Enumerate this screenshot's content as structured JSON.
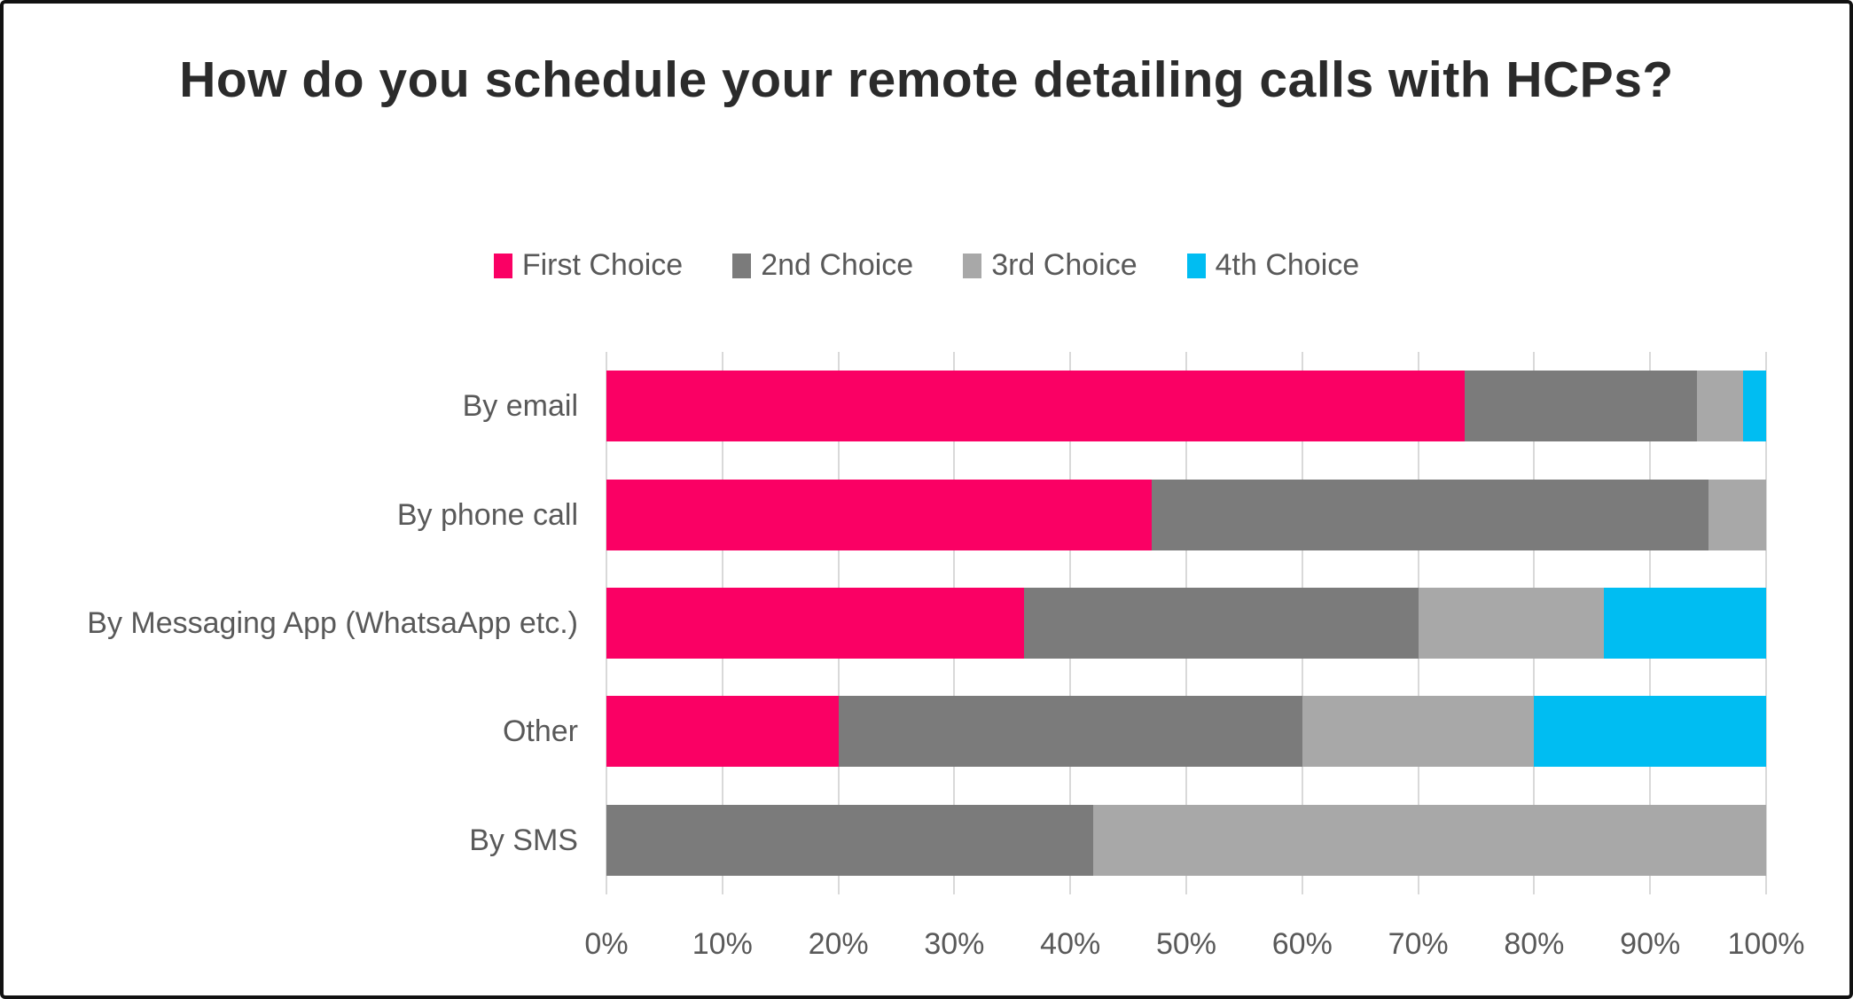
{
  "title": "How do you schedule your remote detailing calls with HCPs?",
  "legend": [
    {
      "label": "First Choice",
      "color": "#FA0064"
    },
    {
      "label": "2nd Choice",
      "color": "#7B7B7B"
    },
    {
      "label": "3rd Choice",
      "color": "#A8A8A8"
    },
    {
      "label": "4th Choice",
      "color": "#00BDF2"
    }
  ],
  "chart_data": {
    "type": "bar",
    "orientation": "horizontal",
    "stacked": true,
    "title": "How do you schedule your remote detailing calls with HCPs?",
    "categories": [
      "By email",
      "By phone call",
      "By Messaging App (WhatsaApp etc.)",
      "Other",
      "By SMS"
    ],
    "series": [
      {
        "name": "First Choice",
        "color": "#FA0064",
        "values": [
          74,
          47,
          36,
          20,
          0
        ]
      },
      {
        "name": "2nd Choice",
        "color": "#7B7B7B",
        "values": [
          20,
          48,
          34,
          40,
          42
        ]
      },
      {
        "name": "3rd Choice",
        "color": "#A8A8A8",
        "values": [
          4,
          5,
          16,
          20,
          58
        ]
      },
      {
        "name": "4th Choice",
        "color": "#00BDF2",
        "values": [
          2,
          0,
          14,
          20,
          0
        ]
      }
    ],
    "x_ticks": [
      "0%",
      "10%",
      "20%",
      "30%",
      "40%",
      "50%",
      "60%",
      "70%",
      "80%",
      "90%",
      "100%"
    ],
    "xlim": [
      0,
      100
    ],
    "grid": "vertical",
    "gridline_color": "#d9d9d9",
    "legend_position": "top",
    "label_color": "#595959",
    "title_color": "#2b2b2b"
  }
}
